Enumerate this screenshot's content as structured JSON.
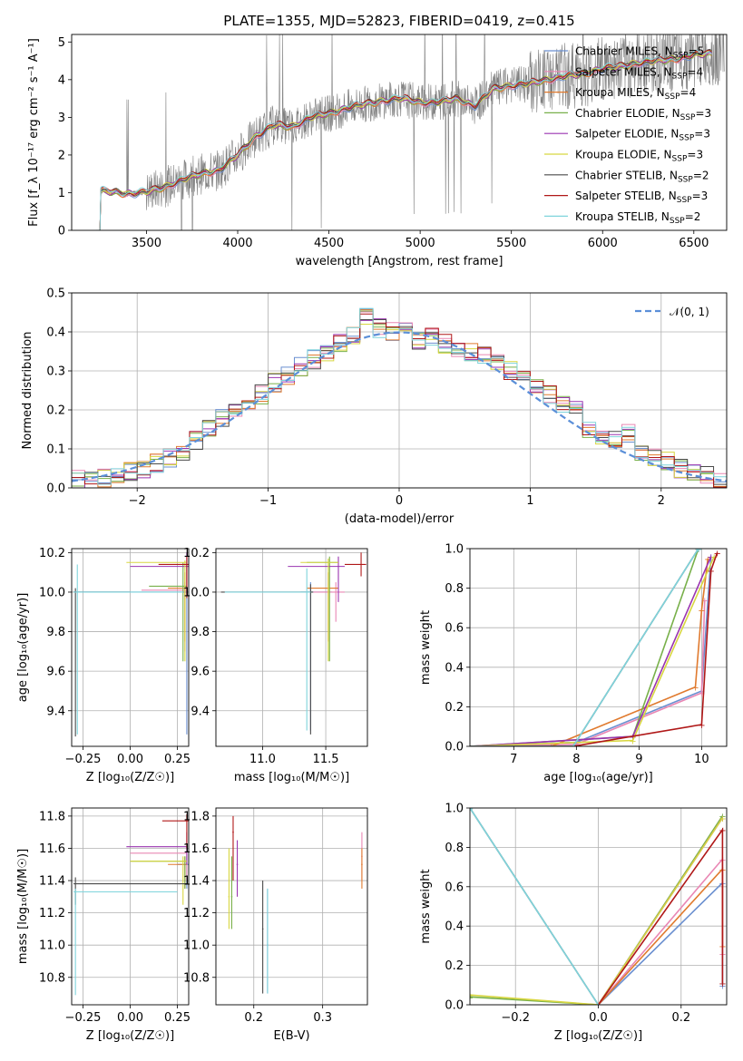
{
  "figure": {
    "title": "PLATE=1355, MJD=52823, FIBERID=0419, z=0.415"
  },
  "colors": {
    "Chabrier MILES": "#6a8fd0",
    "Salpeter MILES": "#e987b4",
    "Kroupa MILES": "#e07a2e",
    "Chabrier ELODIE": "#78b04a",
    "Salpeter ELODIE": "#9a34b0",
    "Kroupa ELODIE": "#d8d640",
    "Chabrier STELIB": "#4a4a4a",
    "Salpeter STELIB": "#b01818",
    "Kroupa STELIB": "#7fd4dc",
    "data": "#808080",
    "normal": "#5b8fd8"
  },
  "chart_data": [
    {
      "id": "spectrum",
      "type": "line",
      "title": "PLATE=1355, MJD=52823, FIBERID=0419, z=0.415",
      "xlabel": "wavelength [Angstrom, rest frame]",
      "ylabel": "Flux [f_λ 10⁻¹⁷ erg cm⁻² s⁻¹ A⁻¹]",
      "xlim": [
        3090,
        6680
      ],
      "ylim": [
        0,
        5.2
      ],
      "xticks": [
        "3500",
        "4000",
        "4500",
        "5000",
        "5500",
        "6000",
        "6500"
      ],
      "yticks": [
        "0",
        "1",
        "2",
        "3",
        "4",
        "5"
      ],
      "grid": false,
      "legend": "right",
      "model_x": [
        3250,
        3400,
        3500,
        3600,
        3700,
        3800,
        3900,
        4000,
        4100,
        4200,
        4300,
        4400,
        4500,
        4600,
        4700,
        4800,
        4900,
        5000,
        5100,
        5200,
        5300,
        5400,
        5500,
        5600,
        5700,
        5800,
        5900,
        6000,
        6100,
        6200,
        6300,
        6400,
        6500,
        6600
      ],
      "model_y": [
        1.05,
        0.97,
        1.02,
        1.15,
        1.35,
        1.5,
        1.6,
        2.0,
        2.5,
        2.8,
        2.75,
        3.0,
        3.1,
        3.25,
        3.35,
        3.45,
        3.5,
        3.4,
        3.4,
        3.5,
        3.3,
        3.75,
        3.85,
        3.9,
        4.0,
        4.1,
        4.15,
        4.3,
        4.35,
        4.45,
        4.5,
        4.55,
        4.65,
        4.7
      ],
      "series": [
        {
          "name": "Chabrier MILES, N_SSP=5",
          "label_main": "Chabrier MILES, N",
          "label_sub": "SSP",
          "label_end": "=5"
        },
        {
          "name": "Salpeter MILES, N_SSP=4",
          "label_main": "Salpeter MILES, N",
          "label_sub": "SSP",
          "label_end": "=4"
        },
        {
          "name": "Kroupa MILES, N_SSP=4",
          "label_main": "Kroupa MILES, N",
          "label_sub": "SSP",
          "label_end": "=4"
        },
        {
          "name": "Chabrier ELODIE, N_SSP=3",
          "label_main": "Chabrier ELODIE, N",
          "label_sub": "SSP",
          "label_end": "=3"
        },
        {
          "name": "Salpeter ELODIE, N_SSP=3",
          "label_main": "Salpeter ELODIE, N",
          "label_sub": "SSP",
          "label_end": "=3"
        },
        {
          "name": "Kroupa ELODIE, N_SSP=3",
          "label_main": "Kroupa ELODIE, N",
          "label_sub": "SSP",
          "label_end": "=3"
        },
        {
          "name": "Chabrier STELIB, N_SSP=2",
          "label_main": "Chabrier STELIB, N",
          "label_sub": "SSP",
          "label_end": "=2"
        },
        {
          "name": "Salpeter STELIB, N_SSP=3",
          "label_main": "Salpeter STELIB, N",
          "label_sub": "SSP",
          "label_end": "=3"
        },
        {
          "name": "Kroupa STELIB, N_SSP=2",
          "label_main": "Kroupa STELIB, N",
          "label_sub": "SSP",
          "label_end": "=2"
        }
      ]
    },
    {
      "id": "residuals",
      "type": "line",
      "xlabel": "(data-model)/error",
      "ylabel": "Normed distribution",
      "xlim": [
        -2.5,
        2.5
      ],
      "ylim": [
        0,
        0.5
      ],
      "xticks": [
        "−2",
        "−1",
        "0",
        "1",
        "2"
      ],
      "yticks": [
        "0.0",
        "0.1",
        "0.2",
        "0.3",
        "0.4",
        "0.5"
      ],
      "grid": true,
      "legend": "top-right",
      "normal_label": "𝒩(0, 1)",
      "hist_centers": [
        -2.45,
        -2.35,
        -2.25,
        -2.15,
        -2.05,
        -1.95,
        -1.85,
        -1.75,
        -1.65,
        -1.55,
        -1.45,
        -1.35,
        -1.25,
        -1.15,
        -1.05,
        -0.95,
        -0.85,
        -0.75,
        -0.65,
        -0.55,
        -0.45,
        -0.35,
        -0.25,
        -0.15,
        -0.05,
        0.05,
        0.15,
        0.25,
        0.35,
        0.45,
        0.55,
        0.65,
        0.75,
        0.85,
        0.95,
        1.05,
        1.15,
        1.25,
        1.35,
        1.45,
        1.55,
        1.65,
        1.75,
        1.85,
        1.95,
        2.05,
        2.15,
        2.25,
        2.35,
        2.45
      ],
      "hist_base": [
        0.02,
        0.02,
        0.025,
        0.03,
        0.04,
        0.05,
        0.065,
        0.075,
        0.09,
        0.12,
        0.15,
        0.18,
        0.2,
        0.22,
        0.24,
        0.27,
        0.29,
        0.31,
        0.33,
        0.34,
        0.37,
        0.39,
        0.44,
        0.41,
        0.4,
        0.4,
        0.38,
        0.39,
        0.37,
        0.36,
        0.35,
        0.34,
        0.32,
        0.3,
        0.28,
        0.26,
        0.24,
        0.21,
        0.2,
        0.15,
        0.13,
        0.12,
        0.14,
        0.09,
        0.08,
        0.07,
        0.05,
        0.04,
        0.03,
        0.02
      ]
    },
    {
      "id": "age-vs-Z",
      "type": "scatter",
      "xlabel": "Z [log₁₀(Z/Z☉)]",
      "ylabel": "age  [log₁₀(age/yr)]",
      "xlim": [
        -0.31,
        0.31
      ],
      "ylim": [
        9.22,
        10.22
      ],
      "xticks": [
        "−0.25",
        "0.00",
        "0.25"
      ],
      "yticks": [
        "9.4",
        "9.6",
        "9.8",
        "10.0",
        "10.2"
      ],
      "grid": true
    },
    {
      "id": "age-vs-mass",
      "type": "scatter",
      "xlabel": "mass [log₁₀(M/M☉)]",
      "xlim": [
        10.63,
        11.83
      ],
      "ylim": [
        9.22,
        10.22
      ],
      "xticks": [
        "11.0",
        "11.5"
      ],
      "yticks": [
        "9.4",
        "9.6",
        "9.8",
        "10.0",
        "10.2"
      ],
      "grid": true
    },
    {
      "id": "weight-vs-age",
      "type": "line",
      "xlabel": "age  [log₁₀(age/yr)]",
      "ylabel": "mass weight",
      "xlim": [
        6.3,
        10.4
      ],
      "ylim": [
        0,
        1
      ],
      "xticks": [
        "7",
        "8",
        "9",
        "10"
      ],
      "yticks": [
        "0.0",
        "0.2",
        "0.4",
        "0.6",
        "0.8",
        "1.0"
      ],
      "grid": true
    },
    {
      "id": "mass-vs-Z",
      "type": "scatter",
      "xlabel": "Z [log₁₀(Z/Z☉)]",
      "ylabel": "mass [log₁₀(M/M☉)]",
      "xlim": [
        -0.31,
        0.31
      ],
      "ylim": [
        10.63,
        11.85
      ],
      "xticks": [
        "−0.25",
        "0.00",
        "0.25"
      ],
      "yticks": [
        "10.8",
        "11.0",
        "11.2",
        "11.4",
        "11.6",
        "11.8"
      ],
      "grid": true
    },
    {
      "id": "mass-vs-ebv",
      "type": "scatter",
      "xlabel": "E(B-V)",
      "xlim": [
        0.145,
        0.365
      ],
      "ylim": [
        10.63,
        11.85
      ],
      "xticks": [
        "0.2",
        "0.3"
      ],
      "yticks": [
        "10.8",
        "11.0",
        "11.2",
        "11.4",
        "11.6",
        "11.8"
      ],
      "grid": true
    },
    {
      "id": "weight-vs-Z",
      "type": "line",
      "xlabel": "Z [log₁₀(Z/Z☉)]",
      "ylabel": "mass weight",
      "xlim": [
        -0.31,
        0.31
      ],
      "ylim": [
        0,
        1
      ],
      "xticks": [
        "−0.2",
        "0.0",
        "0.2"
      ],
      "yticks": [
        "0.0",
        "0.2",
        "0.4",
        "0.6",
        "0.8",
        "1.0"
      ],
      "grid": true
    }
  ]
}
